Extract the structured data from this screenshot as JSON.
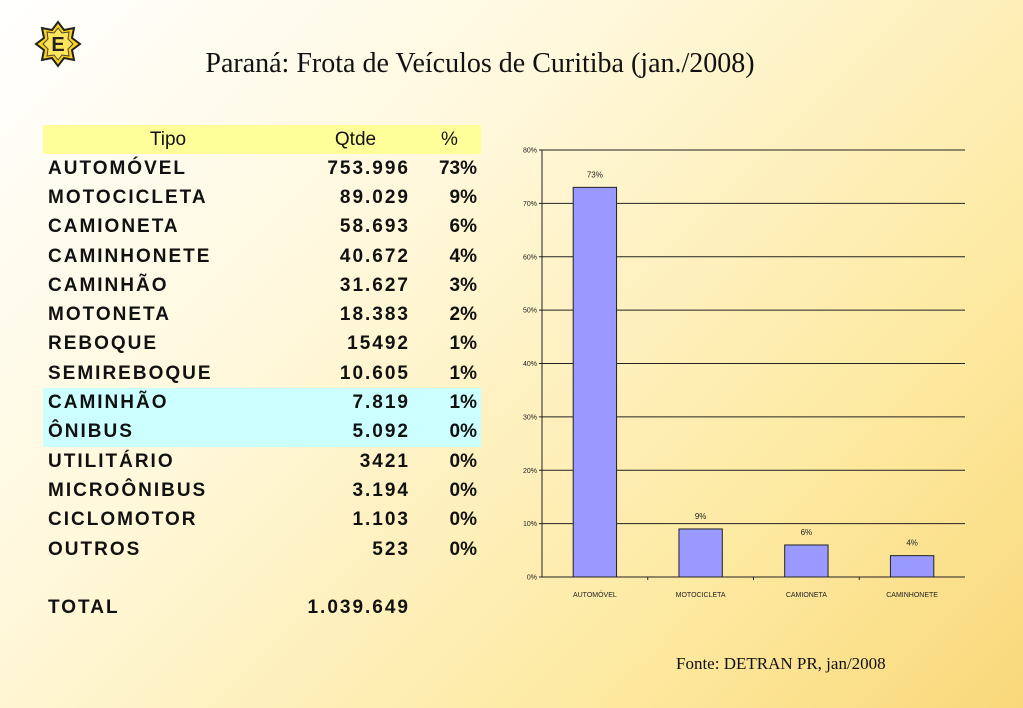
{
  "logo_letter": "E",
  "title": "Paraná: Frota de Veículos de Curitiba (jan./2008)",
  "table": {
    "headers": [
      "Tipo",
      "Qtde",
      "%"
    ],
    "rows": [
      {
        "tipo": "AUTOMÓVEL",
        "qtde": "753.996",
        "pct": "73%",
        "highlight": false
      },
      {
        "tipo": "MOTOCICLETA",
        "qtde": "89.029",
        "pct": "9%",
        "highlight": false
      },
      {
        "tipo": "CAMIONETA",
        "qtde": "58.693",
        "pct": "6%",
        "highlight": false
      },
      {
        "tipo": "CAMINHONETE",
        "qtde": "40.672",
        "pct": "4%",
        "highlight": false
      },
      {
        "tipo": "CAMINHÃO",
        "qtde": "31.627",
        "pct": "3%",
        "highlight": false
      },
      {
        "tipo": "MOTONETA",
        "qtde": "18.383",
        "pct": "2%",
        "highlight": false
      },
      {
        "tipo": "REBOQUE",
        "qtde": "15492",
        "pct": "1%",
        "highlight": false
      },
      {
        "tipo": "SEMIREBOQUE",
        "qtde": "10.605",
        "pct": "1%",
        "highlight": false
      },
      {
        "tipo": "CAMINHÃO",
        "qtde": "7.819",
        "pct": "1%",
        "highlight": true
      },
      {
        "tipo": "ÔNIBUS",
        "qtde": "5.092",
        "pct": "0%",
        "highlight": true
      },
      {
        "tipo": "UTILITÁRIO",
        "qtde": "3421",
        "pct": "0%",
        "highlight": false
      },
      {
        "tipo": "MICROÔNIBUS",
        "qtde": "3.194",
        "pct": "0%",
        "highlight": false
      },
      {
        "tipo": "CICLOMOTOR",
        "qtde": "1.103",
        "pct": "0%",
        "highlight": false
      },
      {
        "tipo": "OUTROS",
        "qtde": "523",
        "pct": "0%",
        "highlight": false
      }
    ],
    "total": {
      "label": "TOTAL",
      "qtde": "1.039.649"
    }
  },
  "chart_data": {
    "type": "bar",
    "categories": [
      "AUTOMÓVEL",
      "MOTOCICLETA",
      "CAMIONETA",
      "CAMINHONETE"
    ],
    "values": [
      73,
      9,
      6,
      4
    ],
    "data_labels": [
      "73%",
      "9%",
      "6%",
      "4%"
    ],
    "ylim": [
      0,
      80
    ],
    "yticks": [
      "0%",
      "10%",
      "20%",
      "30%",
      "40%",
      "50%",
      "60%",
      "70%",
      "80%"
    ],
    "grid": true,
    "bar_color": "#9999ff",
    "title": "",
    "xlabel": "",
    "ylabel": ""
  },
  "source": "Fonte: DETRAN PR, jan/2008"
}
